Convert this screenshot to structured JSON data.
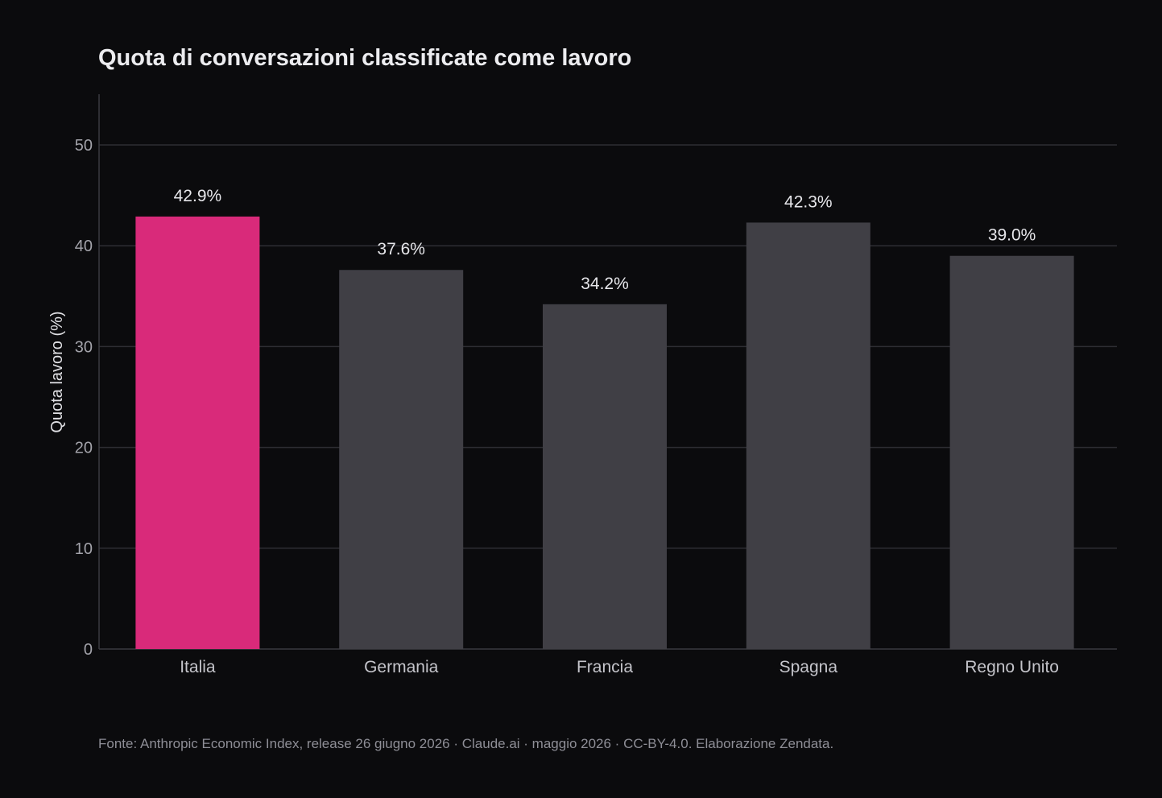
{
  "chart_data": {
    "type": "bar",
    "title": "Quota di conversazioni classificate come lavoro",
    "xlabel": "",
    "ylabel": "Quota lavoro (%)",
    "ylim": [
      0,
      55
    ],
    "yticks": [
      0,
      10,
      20,
      30,
      40,
      50
    ],
    "grid": "horizontal",
    "categories": [
      "Italia",
      "Germania",
      "Francia",
      "Spagna",
      "Regno Unito"
    ],
    "values": [
      42.9,
      37.6,
      34.2,
      42.3,
      39.0
    ],
    "data_labels": [
      "42.9%",
      "37.6%",
      "34.2%",
      "42.3%",
      "39.0%"
    ],
    "highlight_category": "Italia",
    "colors": {
      "background": "#0b0b0d",
      "highlight": "#d92a7a",
      "bar": "#403f45",
      "grid": "#2e2e33",
      "axis": "#3a3a40"
    }
  },
  "footer": {
    "source": "Fonte: Anthropic Economic Index, release 26 giugno 2026 · Claude.ai · maggio 2026 · CC-BY-4.0. Elaborazione Zendata."
  }
}
